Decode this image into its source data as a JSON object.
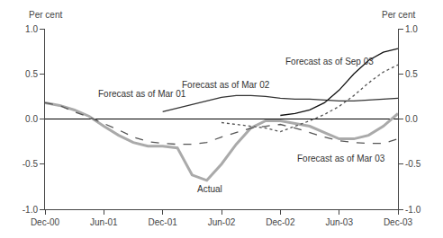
{
  "chart_data": {
    "type": "line",
    "ylabel": "Per cent",
    "y2label": "Per cent",
    "categories": [
      "Dec-00",
      null,
      null,
      null,
      "Jun-01",
      null,
      null,
      null,
      "Dec-01",
      null,
      null,
      null,
      "Jun-02",
      null,
      null,
      null,
      "Dec-02",
      null,
      null,
      null,
      "Jun-03",
      null,
      null,
      null,
      "Dec-03"
    ],
    "series": [
      {
        "color": "#aaaaaa",
        "line_style": "solid",
        "values": [
          0.18,
          0.15,
          0.1,
          0.03,
          -0.08,
          -0.18,
          -0.26,
          -0.3,
          -0.3,
          -0.32,
          -0.62,
          -0.68,
          -0.5,
          -0.28,
          -0.1,
          -0.02,
          -0.02,
          -0.05,
          -0.08,
          -0.15,
          -0.22,
          -0.22,
          -0.18,
          -0.08,
          0.06
        ]
      },
      {
        "color": "#555555",
        "line_style": "dashed",
        "values": [
          0.18,
          0.15,
          0.08,
          0.02,
          -0.05,
          -0.12,
          -0.2,
          -0.25,
          -0.27,
          -0.28,
          -0.28,
          -0.26,
          -0.2,
          -0.15,
          -0.1,
          -0.08,
          -0.06,
          -0.1,
          -0.15,
          -0.2,
          -0.24,
          -0.26,
          -0.27,
          -0.27,
          -0.22
        ]
      },
      {
        "color": "#333333",
        "line_style": "solid",
        "values": [
          null,
          null,
          null,
          null,
          null,
          null,
          null,
          null,
          0.08,
          0.12,
          0.16,
          0.2,
          0.24,
          0.26,
          0.26,
          0.25,
          0.23,
          0.22,
          0.22,
          0.21,
          0.2,
          0.2,
          0.21,
          0.22,
          0.23
        ]
      },
      {
        "color": "#111111",
        "line_style": "solid",
        "values": [
          null,
          null,
          null,
          null,
          null,
          null,
          null,
          null,
          null,
          null,
          null,
          null,
          null,
          null,
          null,
          null,
          0.04,
          0.06,
          0.1,
          0.18,
          0.32,
          0.5,
          0.65,
          0.74,
          0.78
        ]
      },
      {
        "color": "#555555",
        "line_style": "dotted",
        "values": [
          null,
          null,
          null,
          null,
          null,
          null,
          null,
          null,
          null,
          null,
          null,
          null,
          -0.04,
          -0.06,
          -0.08,
          -0.1,
          -0.14,
          -0.08,
          -0.02,
          0.05,
          0.14,
          0.26,
          0.4,
          0.52,
          0.6
        ]
      }
    ],
    "ylim": [
      -1.0,
      1.0
    ],
    "yticks": [
      {
        "value": -1.0,
        "label": "-1.0"
      },
      -0.5,
      {
        "value": 0.0,
        "label": "0.0"
      },
      0.5,
      {
        "value": 1.0,
        "label": "1.0"
      }
    ],
    "y2lim": [
      -1.0,
      1.0
    ],
    "y2ticks": [
      {
        "value": -1.0,
        "label": "-1.0"
      },
      -0.5,
      {
        "value": 0.0,
        "label": "0.0"
      },
      0.5,
      {
        "value": 1.0,
        "label": "1.0"
      }
    ],
    "annotations": [
      {
        "text": "Forecast as of Mar 01",
        "x": 3.5,
        "y": 0.28
      },
      {
        "text": "Actual",
        "x": 10.2,
        "y": -0.78
      },
      {
        "text": "Forecast as of Mar 02",
        "x": 9.2,
        "y": 0.38
      },
      {
        "text": "Forecast as of Sep 03",
        "x": 16.2,
        "y": 0.64
      },
      {
        "text": "Forecast as of Mar 03",
        "x": 17.0,
        "y": -0.44
      }
    ],
    "grid": false
  }
}
